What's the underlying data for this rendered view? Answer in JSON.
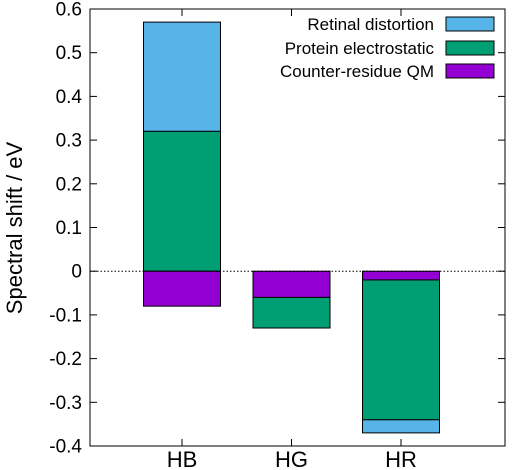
{
  "chart_data": {
    "type": "bar",
    "stacked": true,
    "ylabel": "Spectral shift / eV",
    "xlabel": "",
    "ylim": [
      -0.4,
      0.6
    ],
    "y_ticks": [
      "0.6",
      "0.5",
      "0.4",
      "0.3",
      "0.2",
      "0.1",
      "0",
      "-0.1",
      "-0.2",
      "-0.3",
      "-0.4"
    ],
    "categories": [
      "HB",
      "HG",
      "HR"
    ],
    "zero_line": "dotted",
    "legend_position": "top-right",
    "series": [
      {
        "name": "Retinal distortion",
        "color": "#56b4e9",
        "values": [
          0.25,
          0.0,
          -0.03
        ]
      },
      {
        "name": "Protein electrostatic",
        "color": "#009e73",
        "values": [
          0.32,
          -0.07,
          -0.32
        ]
      },
      {
        "name": "Counter-residue QM",
        "color": "#9400d3",
        "values": [
          -0.08,
          -0.06,
          -0.02
        ]
      }
    ],
    "bar_segments": [
      {
        "category": "HB",
        "series": "Retinal distortion",
        "from": 0.32,
        "to": 0.57
      },
      {
        "category": "HB",
        "series": "Protein electrostatic",
        "from": 0.0,
        "to": 0.32
      },
      {
        "category": "HB",
        "series": "Counter-residue QM",
        "from": -0.08,
        "to": 0.0
      },
      {
        "category": "HG",
        "series": "Counter-residue QM",
        "from": -0.06,
        "to": 0.0
      },
      {
        "category": "HG",
        "series": "Protein electrostatic",
        "from": -0.13,
        "to": -0.06
      },
      {
        "category": "HR",
        "series": "Counter-residue QM",
        "from": -0.02,
        "to": 0.0
      },
      {
        "category": "HR",
        "series": "Protein electrostatic",
        "from": -0.34,
        "to": -0.02
      },
      {
        "category": "HR",
        "series": "Retinal distortion",
        "from": -0.37,
        "to": -0.34
      }
    ]
  }
}
